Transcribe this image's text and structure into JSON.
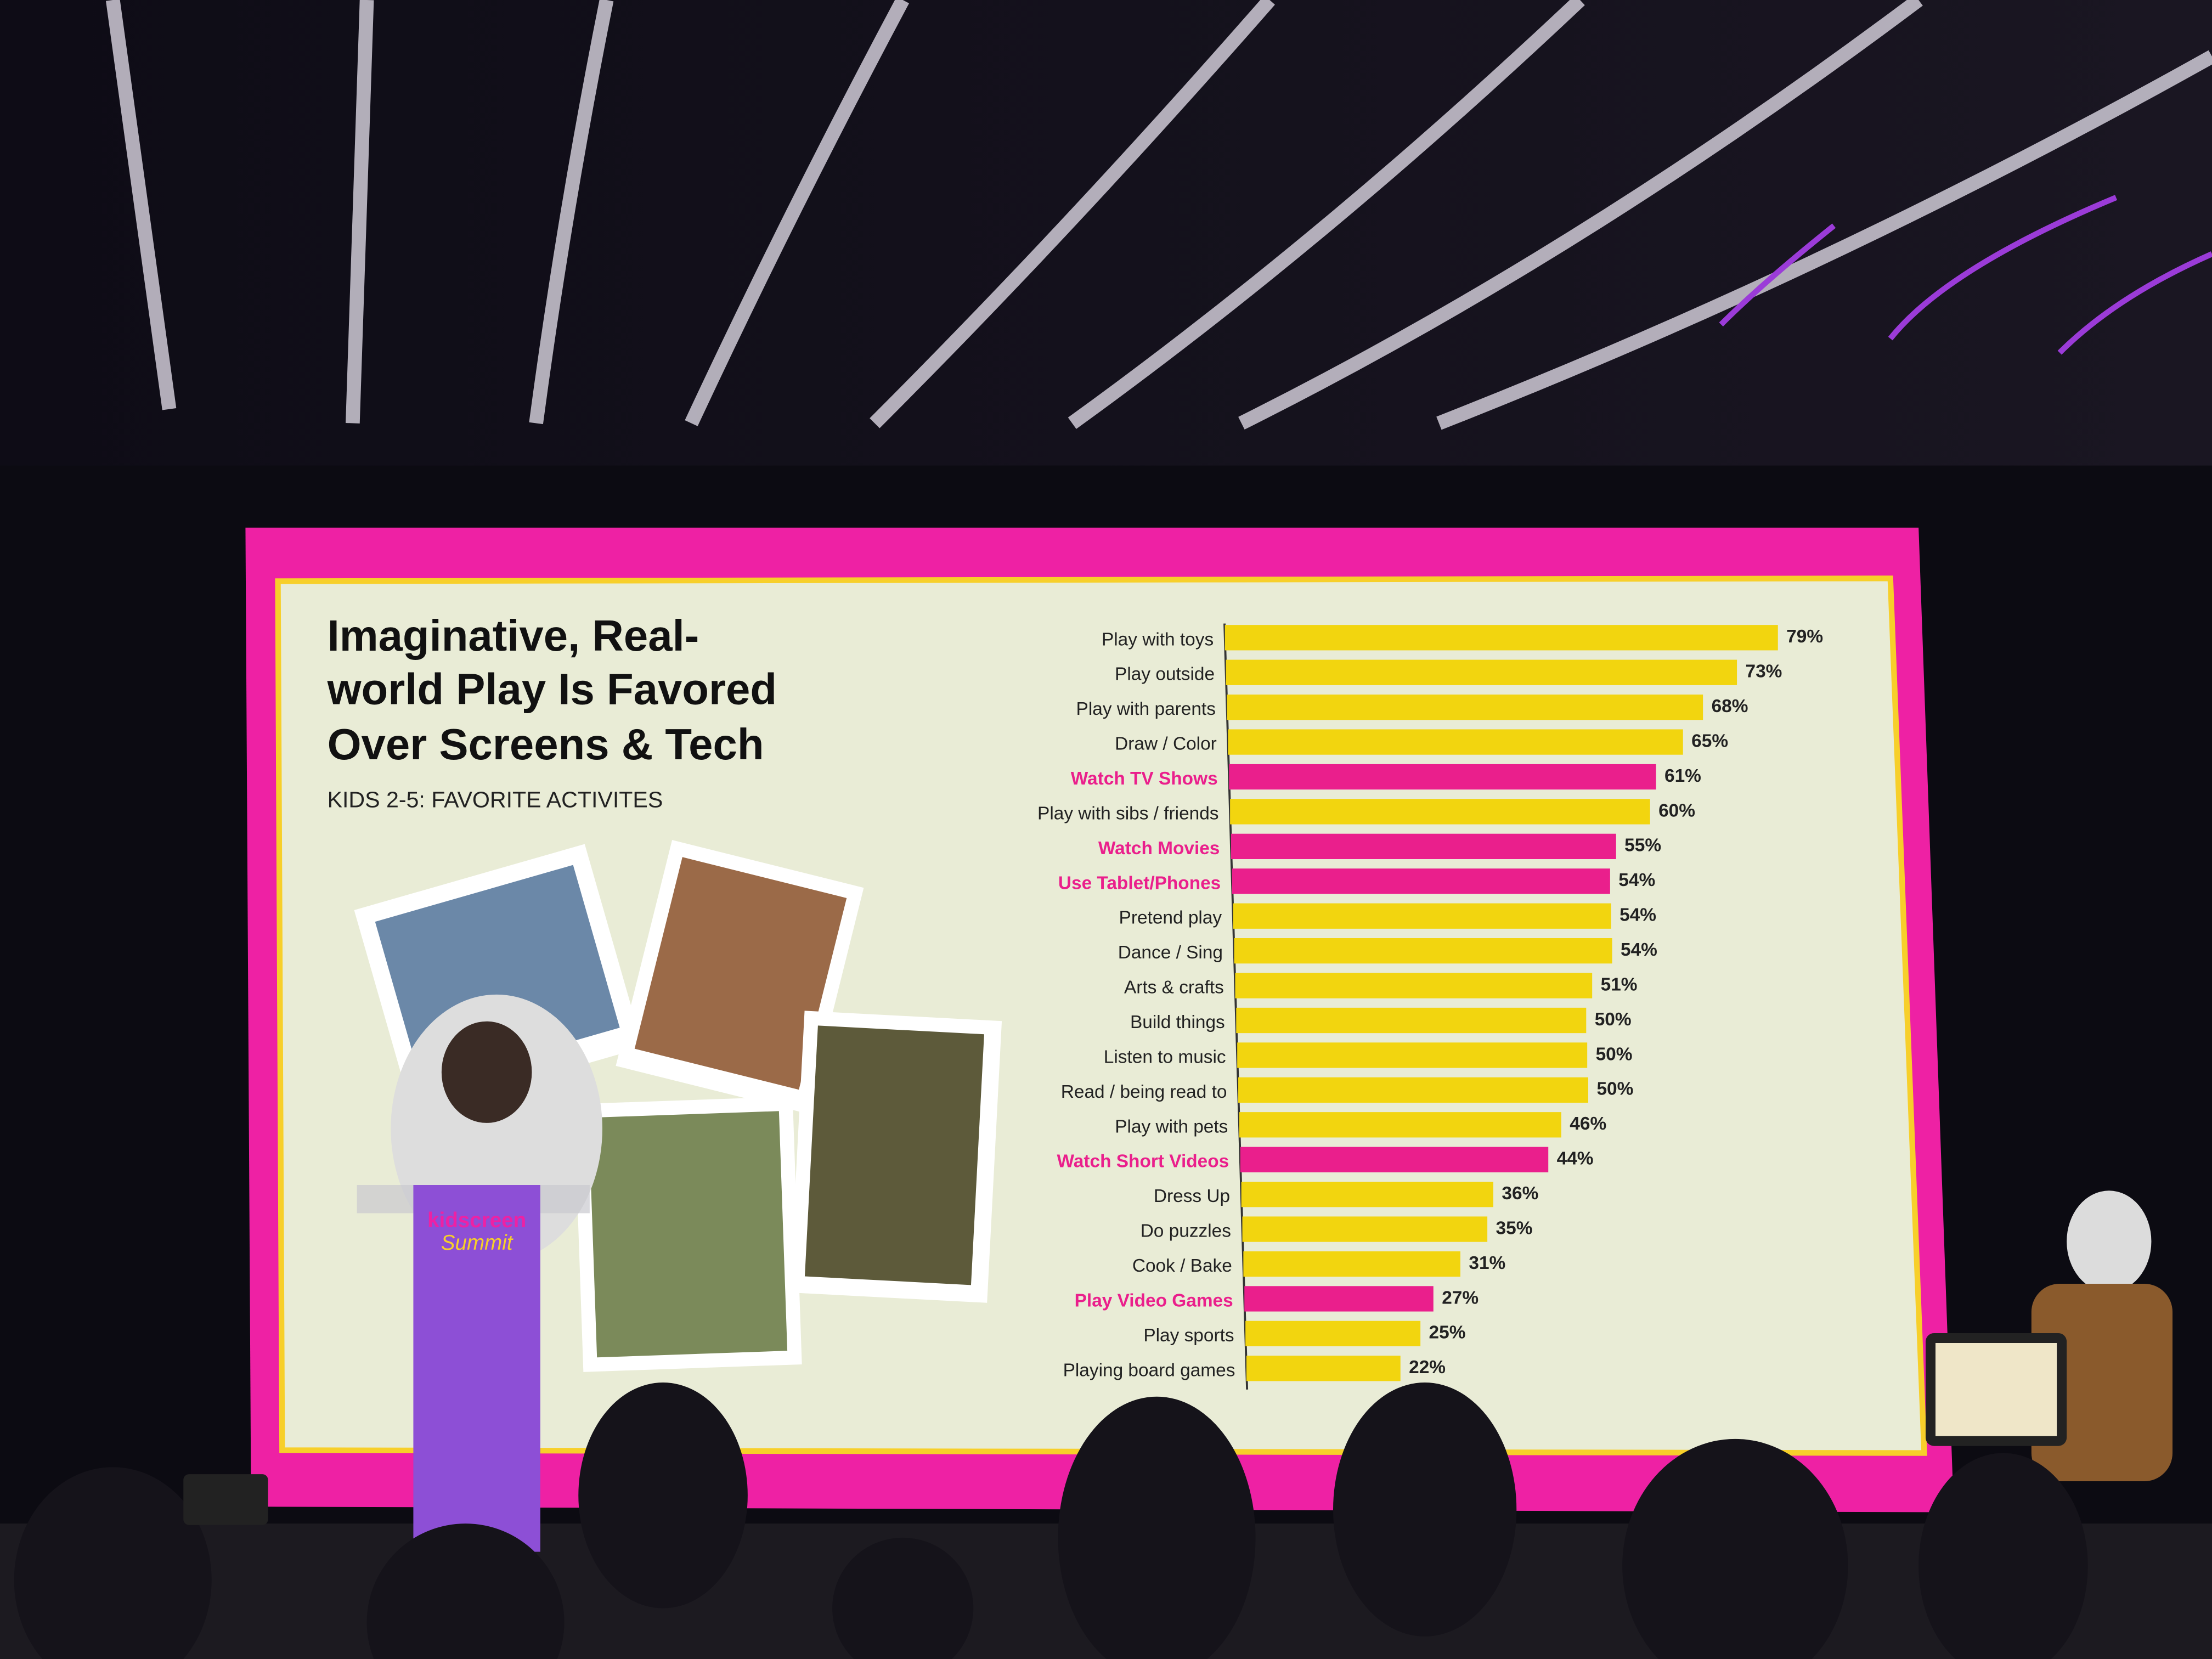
{
  "chart_data": {
    "type": "bar",
    "title": [
      "Imaginative, Real-",
      "world Play Is Favored",
      "Over Screens & Tech"
    ],
    "subtitle": "KIDS 2-5: FAVORITE ACTIVITES",
    "categories": [
      "Play with toys",
      "Play outside",
      "Play with parents",
      "Draw / Color",
      "Watch TV Shows",
      "Play with sibs / friends",
      "Watch Movies",
      "Use Tablet/Phones",
      "Pretend play",
      "Dance / Sing",
      "Arts & crafts",
      "Build things",
      "Listen to music",
      "Read / being read to",
      "Play with pets",
      "Watch Short Videos",
      "Dress Up",
      "Do puzzles",
      "Cook / Bake",
      "Play Video Games",
      "Play sports",
      "Playing board games"
    ],
    "values": [
      79,
      73,
      68,
      65,
      61,
      60,
      55,
      54,
      54,
      54,
      51,
      50,
      50,
      50,
      46,
      44,
      36,
      35,
      31,
      27,
      25,
      22
    ],
    "value_labels": [
      "79%",
      "73%",
      "68%",
      "65%",
      "61%",
      "60%",
      "55%",
      "54%",
      "54%",
      "54%",
      "51%",
      "50%",
      "50%",
      "50%",
      "46%",
      "44%",
      "36%",
      "35%",
      "31%",
      "27%",
      "25%",
      "22%"
    ],
    "colors": [
      "#f2d50f",
      "#f2d50f",
      "#f2d50f",
      "#f2d50f",
      "#ea1f8c",
      "#f2d50f",
      "#ea1f8c",
      "#ea1f8c",
      "#f2d50f",
      "#f2d50f",
      "#f2d50f",
      "#f2d50f",
      "#f2d50f",
      "#f2d50f",
      "#f2d50f",
      "#ea1f8c",
      "#f2d50f",
      "#f2d50f",
      "#f2d50f",
      "#ea1f8c",
      "#f2d50f",
      "#f2d50f"
    ],
    "highlight_color": "#ea1f8c",
    "podium_logo": [
      "kidscreen",
      "Summit"
    ]
  }
}
